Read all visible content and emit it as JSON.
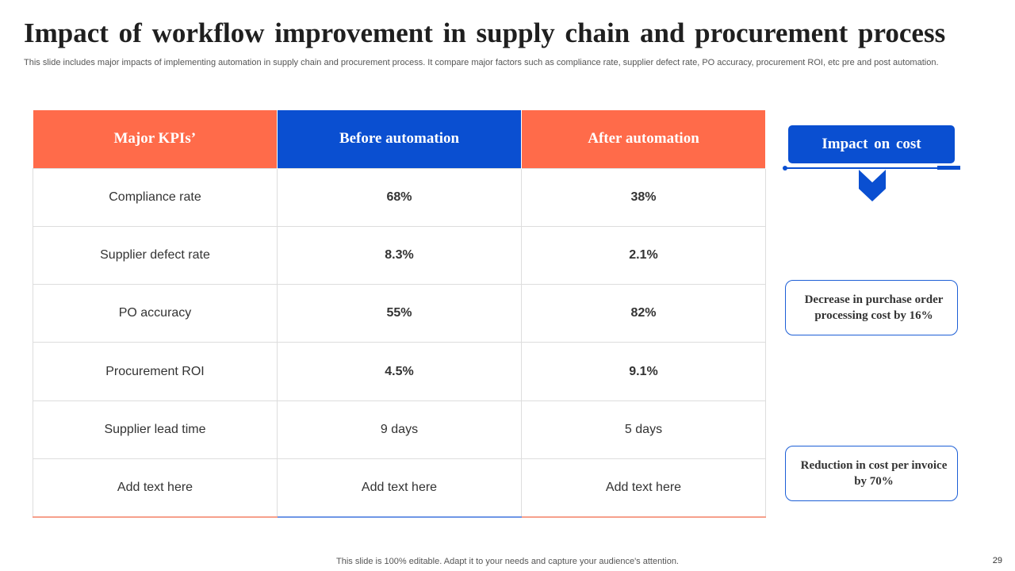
{
  "slide": {
    "title": "Impact of workflow improvement in supply chain and procurement process",
    "subtitle": "This slide includes major impacts of implementing automation in supply chain and procurement process. It compare major factors such as compliance rate, supplier defect rate, PO accuracy, procurement ROI, etc pre and post automation."
  },
  "table": {
    "headers": [
      "Major KPIs’",
      "Before automation",
      "After automation"
    ],
    "rows": [
      {
        "kpi": "Compliance rate",
        "before": "68%",
        "after": "38%"
      },
      {
        "kpi": "Supplier defect rate",
        "before": "8.3%",
        "after": "2.1%"
      },
      {
        "kpi": "PO accuracy",
        "before": "55%",
        "after": "82%"
      },
      {
        "kpi": "Procurement ROI",
        "before": "4.5%",
        "after": "9.1%"
      },
      {
        "kpi": "Supplier lead time",
        "before": "9 days",
        "after": "5 days"
      },
      {
        "kpi": "Add text here",
        "before": "Add text here",
        "after": "Add text here"
      }
    ]
  },
  "impact": {
    "title": "Impact on cost",
    "cards": [
      "Decrease in purchase order processing cost by 16%",
      "Reduction in cost per invoice by 70%"
    ]
  },
  "footer": {
    "note": "This slide is 100% editable. Adapt it to your needs and capture your audience's attention.",
    "page_number": "29"
  },
  "colors": {
    "orange": "#ff6b4a",
    "blue": "#0a4fd1"
  }
}
